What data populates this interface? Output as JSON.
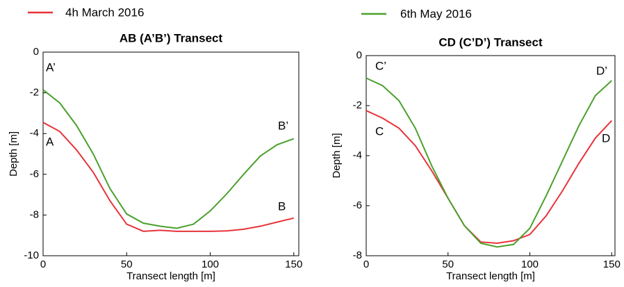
{
  "legend": [
    {
      "name": "4h March 2016",
      "color": "#e8333a"
    },
    {
      "name": "6th May 2016",
      "color": "#4aa02c"
    }
  ],
  "chart_data": [
    {
      "type": "line",
      "title": "AB (A’B’) Transect",
      "x_label": "Transect length [m]",
      "y_label": "Depth [m]",
      "x": [
        0,
        10,
        20,
        30,
        40,
        50,
        60,
        70,
        80,
        90,
        100,
        110,
        120,
        130,
        140,
        150
      ],
      "series": [
        {
          "color": "#e8333a",
          "values": [
            -3.45,
            -3.9,
            -4.8,
            -5.9,
            -7.3,
            -8.45,
            -8.8,
            -8.75,
            -8.8,
            -8.8,
            -8.8,
            -8.78,
            -8.7,
            -8.55,
            -8.35,
            -8.15
          ]
        },
        {
          "color": "#4aa02c",
          "values": [
            -1.85,
            -2.5,
            -3.6,
            -5.0,
            -6.7,
            -7.95,
            -8.4,
            -8.55,
            -8.65,
            -8.45,
            -7.8,
            -6.95,
            -6.0,
            -5.1,
            -4.55,
            -4.25
          ]
        }
      ],
      "xlim": [
        0,
        153
      ],
      "xticks": [
        0,
        50,
        100,
        150
      ],
      "ylim": [
        -10,
        0
      ],
      "yticks": [
        0,
        -2,
        -4,
        -6,
        -8,
        -10
      ],
      "annotations": [
        "A’",
        "A",
        "B’",
        "B"
      ]
    },
    {
      "type": "line",
      "title": "CD (C’D’) Transect",
      "x_label": "Transect length [m]",
      "y_label": "Depth [m]",
      "x": [
        0,
        10,
        20,
        30,
        40,
        50,
        60,
        70,
        80,
        90,
        100,
        110,
        120,
        130,
        140,
        150
      ],
      "series": [
        {
          "color": "#e8333a",
          "values": [
            -2.2,
            -2.5,
            -2.9,
            -3.6,
            -4.6,
            -5.7,
            -6.8,
            -7.45,
            -7.5,
            -7.4,
            -7.15,
            -6.4,
            -5.4,
            -4.3,
            -3.3,
            -2.6
          ]
        },
        {
          "color": "#4aa02c",
          "values": [
            -0.9,
            -1.2,
            -1.8,
            -2.9,
            -4.4,
            -5.7,
            -6.8,
            -7.5,
            -7.65,
            -7.55,
            -6.9,
            -5.6,
            -4.2,
            -2.8,
            -1.6,
            -1.0
          ]
        }
      ],
      "xlim": [
        0,
        152
      ],
      "xticks": [
        0,
        50,
        100,
        150
      ],
      "ylim": [
        -8,
        0
      ],
      "yticks": [
        0,
        -2,
        -4,
        -6,
        -8
      ],
      "annotations": [
        "C’",
        "C",
        "D’",
        "D"
      ]
    }
  ]
}
